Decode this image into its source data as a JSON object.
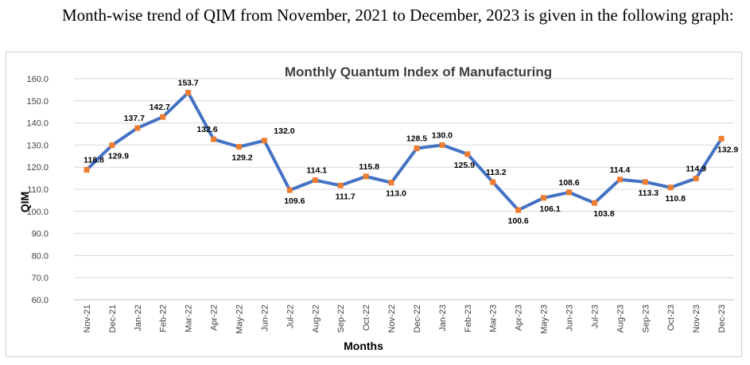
{
  "intro_text": "Month-wise trend of QIM from November, 2021 to December, 2023 is given in the following graph:",
  "chart_data": {
    "type": "line",
    "title": "Monthly Quantum Index of Manufacturing",
    "xlabel": "Months",
    "ylabel": "QIM",
    "ylim": [
      60,
      160
    ],
    "yticks": [
      "60.0",
      "70.0",
      "80.0",
      "90.0",
      "100.0",
      "110.0",
      "120.0",
      "130.0",
      "140.0",
      "150.0",
      "160.0"
    ],
    "grid": true,
    "line_color": "#4472C4",
    "marker_color": "#ED7D31",
    "categories": [
      "Nov-21",
      "Dec-21",
      "Jan-22",
      "Feb-22",
      "Mar-22",
      "Apr-22",
      "May-22",
      "Jun-22",
      "Jul-22",
      "Aug-22",
      "Sep-22",
      "Oct-22",
      "Nov-22",
      "Dec-22",
      "Jan-23",
      "Feb-23",
      "Mar-23",
      "Apr-23",
      "May-23",
      "Jun-23",
      "Jul-23",
      "Aug-23",
      "Sep-23",
      "Oct-23",
      "Nov-23",
      "Dec-23"
    ],
    "values": [
      118.8,
      129.9,
      137.7,
      142.7,
      153.7,
      132.6,
      129.2,
      132.0,
      109.6,
      114.1,
      111.7,
      115.8,
      113.0,
      128.5,
      130.0,
      125.9,
      113.2,
      100.6,
      106.1,
      108.6,
      103.8,
      114.4,
      113.3,
      110.8,
      114.9,
      132.9
    ],
    "data_labels": [
      "118.8",
      "129.9",
      "137.7",
      "142.7",
      "153.7",
      "132.6",
      "129.2",
      "132.0",
      "109.6",
      "114.1",
      "111.7",
      "115.8",
      "113.0",
      "128.5",
      "130.0",
      "125.9",
      "113.2",
      "100.6",
      "106.1",
      "108.6",
      "103.8",
      "114.4",
      "113.3",
      "110.8",
      "114.9",
      "132.9"
    ]
  }
}
